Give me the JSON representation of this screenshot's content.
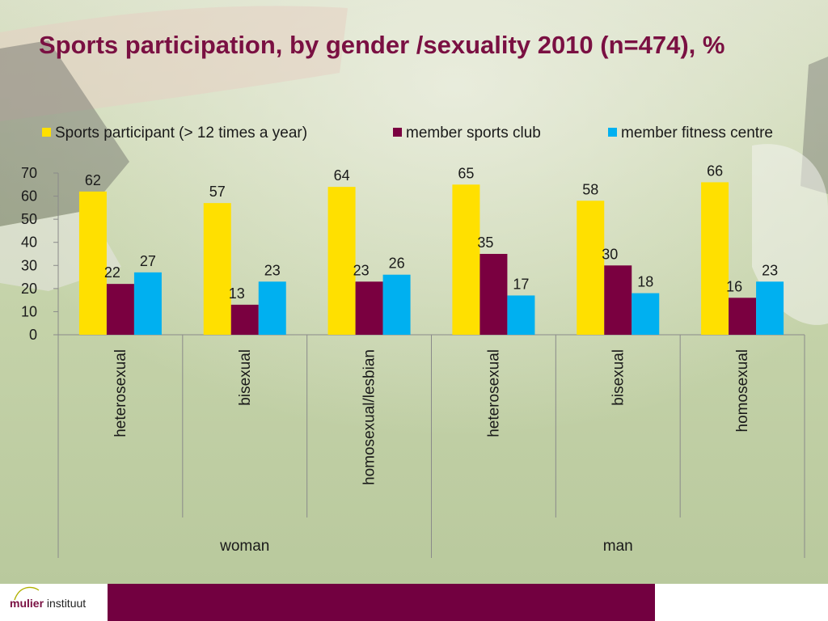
{
  "slide": {
    "title": "Sports participation, by gender /sexuality 2010 (n=474), %"
  },
  "logo": {
    "brand": "mulier",
    "suffix": "instituut"
  },
  "colors": {
    "title": "#7a1042",
    "footer_bar": "#720040"
  },
  "chart_data": {
    "type": "bar",
    "title": "Sports participation, by gender /sexuality 2010 (n=474), %",
    "groups": [
      {
        "label": "woman",
        "categories": [
          "heterosexual",
          "bisexual",
          "homosexual/lesbian"
        ]
      },
      {
        "label": "man",
        "categories": [
          "heterosexual",
          "bisexual",
          "homosexual"
        ]
      }
    ],
    "categories": [
      "heterosexual",
      "bisexual",
      "homosexual/lesbian",
      "heterosexual",
      "bisexual",
      "homosexual"
    ],
    "series": [
      {
        "name": "Sports participant (> 12 times a year)",
        "color": "#ffe000",
        "values": [
          62,
          57,
          64,
          65,
          58,
          66
        ]
      },
      {
        "name": "member sports club",
        "color": "#7a0040",
        "values": [
          22,
          13,
          23,
          35,
          30,
          16
        ]
      },
      {
        "name": "member fitness centre",
        "color": "#00b0f0",
        "values": [
          27,
          23,
          26,
          17,
          18,
          23
        ]
      }
    ],
    "yticks": [
      0,
      10,
      20,
      30,
      40,
      50,
      60,
      70
    ],
    "ylim": [
      0,
      70
    ],
    "legend": "top",
    "grid": false,
    "data_labels": true
  }
}
